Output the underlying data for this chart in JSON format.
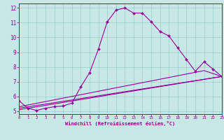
{
  "xlabel": "Windchill (Refroidissement éolien,°C)",
  "xlim": [
    0,
    23
  ],
  "ylim": [
    4.8,
    12.3
  ],
  "yticks": [
    5,
    6,
    7,
    8,
    9,
    10,
    11,
    12
  ],
  "xticks": [
    0,
    1,
    2,
    3,
    4,
    5,
    6,
    7,
    8,
    9,
    10,
    11,
    12,
    13,
    14,
    15,
    16,
    17,
    18,
    19,
    20,
    21,
    22,
    23
  ],
  "bg_color": "#c8e8e8",
  "line_color": "#990099",
  "grid_color": "#99cccc",
  "lines": [
    {
      "x": [
        0,
        1,
        2,
        3,
        4,
        5,
        6,
        7,
        8,
        9,
        10,
        11,
        12,
        13,
        14,
        15,
        16,
        17,
        18,
        19,
        20,
        21,
        22,
        23
      ],
      "y": [
        5.7,
        5.2,
        5.05,
        5.2,
        5.3,
        5.35,
        5.55,
        6.65,
        7.6,
        9.2,
        11.05,
        11.85,
        12.0,
        11.65,
        11.65,
        11.05,
        10.4,
        10.1,
        9.3,
        8.5,
        7.7,
        8.35,
        7.85,
        7.35
      ],
      "marker": true
    },
    {
      "x": [
        0,
        23
      ],
      "y": [
        5.1,
        7.35
      ],
      "marker": false
    },
    {
      "x": [
        0,
        23
      ],
      "y": [
        5.2,
        7.35
      ],
      "marker": false
    },
    {
      "x": [
        0,
        21,
        23
      ],
      "y": [
        5.3,
        7.75,
        7.35
      ],
      "marker": false
    }
  ]
}
